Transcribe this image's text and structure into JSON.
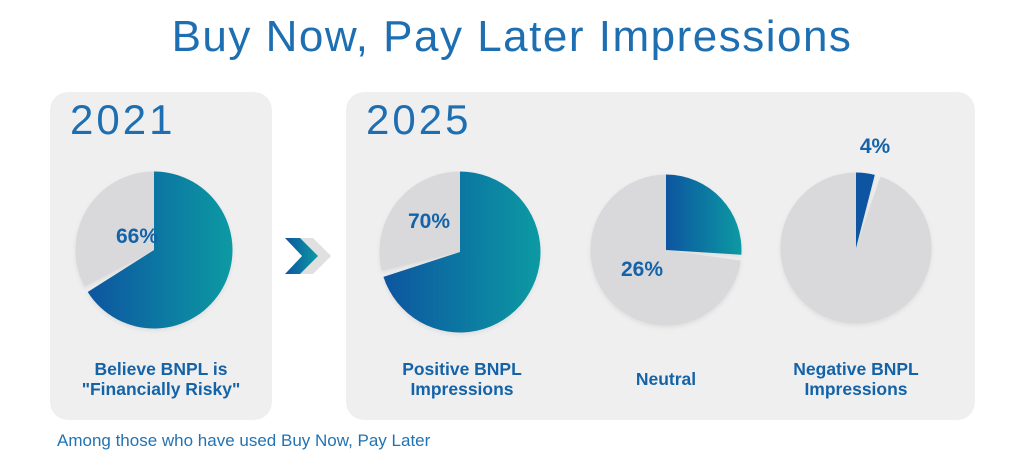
{
  "title": "Buy Now, Pay Later Impressions",
  "footnote": "Among those who have used Buy Now, Pay Later",
  "panels": {
    "left": {
      "year": "2021"
    },
    "right": {
      "year": "2025"
    }
  },
  "arrow_icon": "double-chevron-right",
  "colors": {
    "title_blue": "#1E6FB2",
    "label_blue": "#1463A8",
    "footnote_blue": "#2173B3",
    "pie_blue_start": "#0D55A0",
    "pie_teal_end": "#0C9AA3",
    "pie_gray": "#D9D9DB",
    "panel_bg": "#EFEFEF",
    "arrow_back_gray": "#E0E0E1",
    "background": "#FFFFFF"
  },
  "chart_data": {
    "type": "pie",
    "title": "Buy Now, Pay Later Impressions",
    "note": "Among those who have used Buy Now, Pay Later",
    "groups": [
      "2021",
      "2025"
    ],
    "pies": [
      {
        "group": "2021",
        "value_pct": 66,
        "value_label": "66%",
        "caption": "Believe BNPL is \"Financially Risky\"",
        "caption_lines": [
          "Believe BNPL is",
          "\"Financially Risky\""
        ],
        "colored_slice": "gradient-blue-teal",
        "remainder_color": "gray",
        "label_position": "inside-gray-slice"
      },
      {
        "group": "2025",
        "value_pct": 70,
        "value_label": "70%",
        "caption": "Positive BNPL Impressions",
        "caption_lines": [
          "Positive BNPL",
          "Impressions"
        ],
        "colored_slice": "gradient-blue-teal",
        "remainder_color": "gray",
        "label_position": "inside-gray-slice"
      },
      {
        "group": "2025",
        "value_pct": 26,
        "value_label": "26%",
        "caption": "Neutral",
        "caption_lines": [
          "Neutral",
          ""
        ],
        "colored_slice": "gradient-blue-teal",
        "remainder_color": "gray",
        "label_position": "inside-gray-slice"
      },
      {
        "group": "2025",
        "value_pct": 4,
        "value_label": "4%",
        "caption": "Negative BNPL Impressions",
        "caption_lines": [
          "Negative BNPL",
          "Impressions"
        ],
        "colored_slice": "solid-blue",
        "remainder_color": "gray",
        "label_position": "above-slice"
      }
    ]
  }
}
